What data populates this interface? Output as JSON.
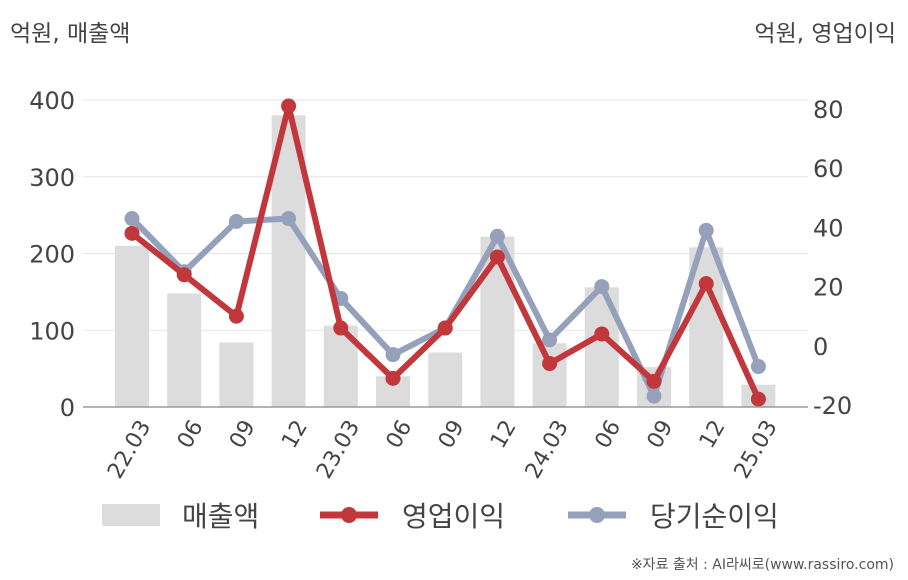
{
  "units": {
    "left": "억원, 매출액",
    "right": "억원, 영업이익"
  },
  "legend": {
    "revenue": "매출액",
    "operating": "영업이익",
    "net": "당기순이익"
  },
  "source": "※자료 출처 : AI라씨로(www.rassiro.com)",
  "colors": {
    "revenue": "#dcdcdc",
    "operating": "#c1373b",
    "net": "#95a1bb",
    "grid": "#e6e6e6",
    "axis": "#9a9a9a"
  },
  "chart_data": {
    "type": "bar+line",
    "categories": [
      "22.03",
      "06",
      "09",
      "12",
      "23.03",
      "06",
      "09",
      "12",
      "24.03",
      "06",
      "09",
      "12",
      "25.03"
    ],
    "left_axis": {
      "ylim": [
        0,
        400
      ],
      "ticks": [
        "0",
        "100",
        "200",
        "300",
        "400"
      ]
    },
    "right_axis": {
      "ylim": [
        -20,
        80
      ],
      "ticks": [
        "-20",
        "0",
        "20",
        "40",
        "60",
        "80"
      ]
    },
    "series": [
      {
        "name": "매출액",
        "type": "bar",
        "axis": "left",
        "values": [
          210,
          148,
          84,
          380,
          106,
          40,
          71,
          222,
          83,
          156,
          52,
          208,
          29
        ]
      },
      {
        "name": "영업이익",
        "type": "line",
        "axis": "right",
        "values": [
          38,
          24,
          10,
          81,
          6,
          -11,
          6,
          30,
          -6,
          4,
          -12,
          21,
          -18
        ]
      },
      {
        "name": "당기순이익",
        "type": "line",
        "axis": "right",
        "values": [
          43,
          25,
          42,
          43,
          16,
          -3,
          6,
          37,
          2,
          20,
          -17,
          39,
          -7
        ]
      }
    ]
  }
}
